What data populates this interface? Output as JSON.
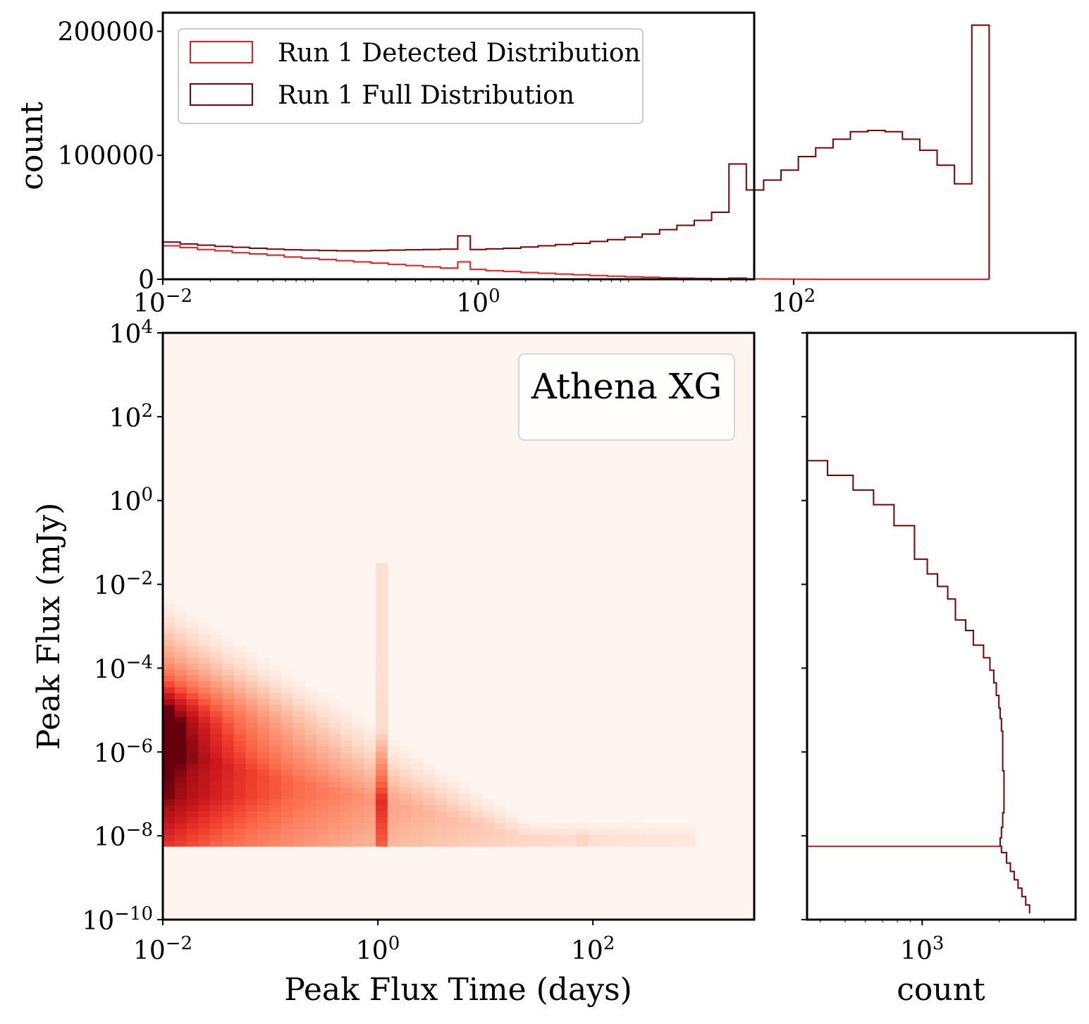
{
  "colors": {
    "detected": "#ee1c1c",
    "full": "#7f0000",
    "heatmap_low": "#fff5f0",
    "heatmap_high": "#67000d"
  },
  "legend": {
    "detected_label": "Run 1 Detected Distribution",
    "full_label": "Run 1 Full Distribution"
  },
  "inset_label": "Athena XG",
  "chart_data": [
    {
      "type": "histogram",
      "panel": "top",
      "xscale": "log",
      "xlim_log10": [
        -2,
        1.75
      ],
      "ylim": [
        0,
        215000
      ],
      "ylabel": "count",
      "yticks": [
        {
          "value": 0,
          "label": "0"
        },
        {
          "value": 100000,
          "label": "100000"
        },
        {
          "value": 200000,
          "label": "200000"
        }
      ],
      "xticks": [
        {
          "exp": -2,
          "base": "10",
          "sup": "−2"
        },
        {
          "exp": 0,
          "base": "10",
          "sup": "0"
        },
        {
          "exp": 2,
          "base": "10",
          "sup": "2"
        }
      ],
      "bin_edges_log10": [
        -2.0,
        -1.89,
        -1.78,
        -1.67,
        -1.56,
        -1.45,
        -1.34,
        -1.23,
        -1.12,
        -1.01,
        -0.9,
        -0.79,
        -0.68,
        -0.57,
        -0.46,
        -0.35,
        -0.24,
        -0.13,
        -0.05,
        0.05,
        0.16,
        0.27,
        0.38,
        0.49,
        0.6,
        0.71,
        0.82,
        0.93,
        1.04,
        1.15,
        1.26,
        1.37,
        1.48,
        1.59,
        1.7,
        1.81,
        1.92,
        2.03,
        2.14,
        2.25,
        2.36,
        2.47,
        2.58,
        2.69,
        2.8,
        2.91,
        3.02,
        3.13,
        3.24,
        3.35,
        3.46,
        3.57
      ],
      "series": [
        {
          "name": "Run 1 Full Distribution",
          "values": [
            30000,
            28500,
            27500,
            26500,
            25800,
            25000,
            24300,
            23800,
            23500,
            23200,
            23000,
            23000,
            23200,
            23500,
            23800,
            24000,
            24300,
            35000,
            24000,
            24500,
            25000,
            26000,
            27000,
            28000,
            29000,
            30500,
            32000,
            34000,
            36500,
            40000,
            43500,
            47500,
            54000,
            93000,
            72000,
            80000,
            88000,
            99000,
            106000,
            113000,
            119000,
            120000,
            119000,
            113000,
            104000,
            92000,
            77000,
            205000
          ]
        },
        {
          "name": "Run 1 Detected Distribution",
          "values": [
            27000,
            25500,
            24000,
            23000,
            21500,
            20500,
            19500,
            18000,
            17000,
            16000,
            15000,
            14000,
            13000,
            12000,
            11000,
            10000,
            9000,
            14000,
            8000,
            7000,
            6300,
            5500,
            4800,
            4200,
            3600,
            3000,
            2500,
            2000,
            1600,
            1200,
            900,
            700,
            500,
            1000,
            300,
            200,
            120,
            60,
            30,
            10,
            0,
            0,
            0,
            0,
            0,
            0,
            0,
            0
          ]
        }
      ]
    },
    {
      "type": "heatmap",
      "panel": "main",
      "xscale": "log",
      "yscale": "log",
      "xlabel": "Peak Flux Time (days)",
      "ylabel": "Peak Flux (mJy)",
      "xlim_log10": [
        -2,
        3.5
      ],
      "ylim_log10": [
        -10,
        4
      ],
      "xticks": [
        {
          "exp": -2,
          "base": "10",
          "sup": "−2"
        },
        {
          "exp": 0,
          "base": "10",
          "sup": "0"
        },
        {
          "exp": 2,
          "base": "10",
          "sup": "2"
        }
      ],
      "yticks": [
        {
          "exp": 4,
          "base": "10",
          "sup": "4"
        },
        {
          "exp": 2,
          "base": "10",
          "sup": "2"
        },
        {
          "exp": 0,
          "base": "10",
          "sup": "0"
        },
        {
          "exp": -2,
          "base": "10",
          "sup": "−2"
        },
        {
          "exp": -4,
          "base": "10",
          "sup": "−4"
        },
        {
          "exp": -6,
          "base": "10",
          "sup": "−6"
        },
        {
          "exp": -8,
          "base": "10",
          "sup": "−8"
        },
        {
          "exp": -10,
          "base": "10",
          "sup": "−10"
        }
      ],
      "bin_width_log10": 0.11,
      "detection_floor_log10_mJy": -8.25,
      "density_peak_log10_mJy": -5.2,
      "density_peak_time_log10": -2.0,
      "ridge_at_log10_time": 0.0,
      "ridge_at_log10_time_secondary": 1.9
    },
    {
      "type": "histogram",
      "panel": "right",
      "orientation": "horizontal",
      "xscale": "log",
      "xlabel": "count",
      "xlim_log10": [
        2.55,
        3.6
      ],
      "xticks": [
        {
          "exp": 3,
          "base": "10",
          "sup": "3"
        }
      ],
      "ylim_log10": [
        -10,
        4
      ],
      "bin_edges_log10": [
        1.2,
        0.95,
        0.6,
        0.25,
        -0.1,
        -0.6,
        -1.4,
        -1.75,
        -2.05,
        -2.35,
        -2.85,
        -3.1,
        -3.45,
        -3.75,
        -4.05,
        -4.35,
        -4.65,
        -4.95,
        -5.2,
        -5.5,
        -6.0,
        -6.45,
        -6.95,
        -7.45,
        -7.8,
        -8.05,
        -8.25,
        -8.4,
        -8.65,
        -8.85,
        -9.05,
        -9.25,
        -9.45,
        -9.65,
        -9.85
      ],
      "series": [
        {
          "name": "Run 1 Full Distribution",
          "values_log10": [
            2.55,
            2.63,
            2.73,
            2.81,
            2.89,
            2.97,
            3.02,
            3.06,
            3.1,
            3.13,
            3.17,
            3.2,
            3.24,
            3.265,
            3.28,
            3.29,
            3.3,
            3.305,
            3.31,
            3.315,
            3.315,
            3.32,
            3.32,
            3.315,
            3.31,
            3.305,
            3.31,
            3.33,
            3.345,
            3.36,
            3.375,
            3.39,
            3.405,
            3.42
          ]
        },
        {
          "name": "Run 1 Detected Distribution",
          "floor_log10_mJy": -8.25,
          "value_log10_at_floor": 3.305
        }
      ]
    }
  ]
}
